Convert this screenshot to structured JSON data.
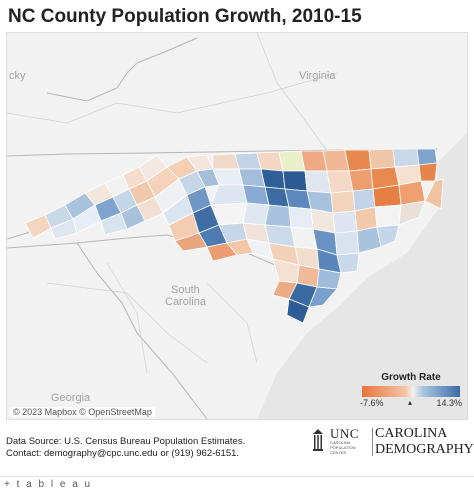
{
  "title": "NC County Population Growth, 2010-15",
  "map_labels": {
    "state_ky": "cky",
    "state_va": "Virginia",
    "state_sc_1": "South",
    "state_sc_2": "Carolina",
    "state_ga": "Georgia"
  },
  "attribution": "© 2023 Mapbox  © OpenStreetMap",
  "legend": {
    "title": "Growth Rate",
    "min_label": "-7.6%",
    "max_label": "14.3%",
    "min_color": "#e8743b",
    "mid_color": "#f2f2f2",
    "max_color": "#3d6da6",
    "marker": "▴"
  },
  "footer": {
    "line1": "Data Source: U.S. Census Bureau Population Estimates.",
    "line2": "Contact: demography@cpc.unc.edu or (919) 962-6151."
  },
  "logo": {
    "unc": "UNC",
    "unc_sub": "CAROLINA POPULATION CENTER",
    "cd_line1": "CAROLINA",
    "cd_line2": "DEMOGRAPHY"
  },
  "tableau_label": "+ t a b l e a u",
  "colors": {
    "map_background": "#f2f2f2",
    "county_border": "#ffffff",
    "state_border": "#b0b0b0",
    "water": "#e4e4e4"
  }
}
